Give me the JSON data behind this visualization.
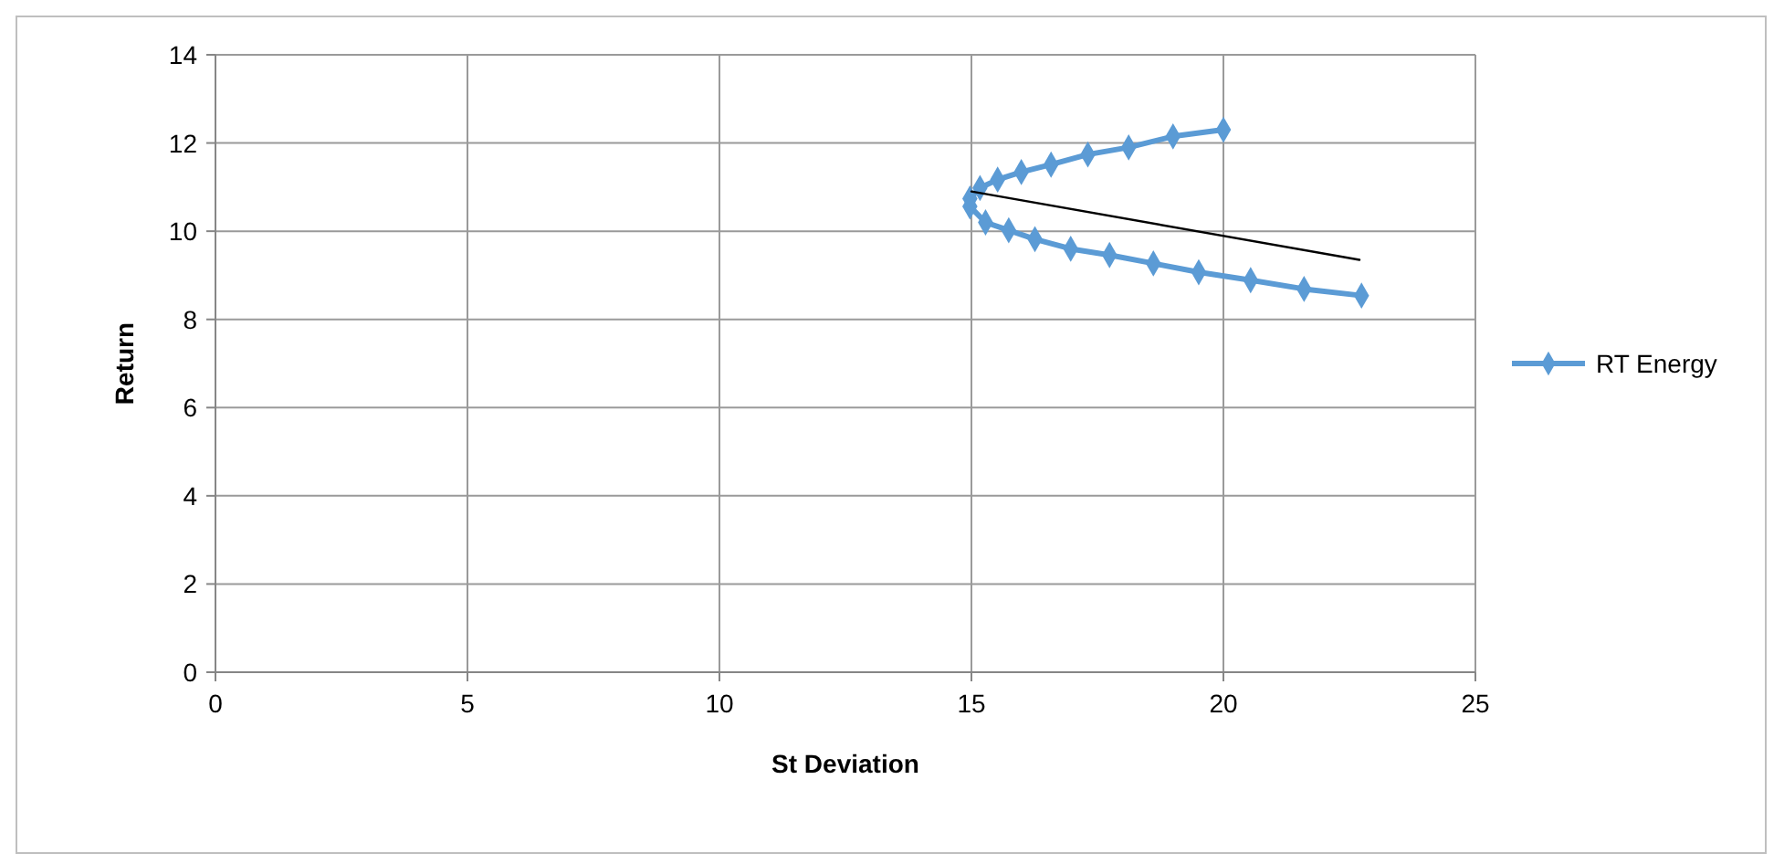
{
  "chart_data": {
    "type": "line",
    "xlabel": "St Deviation",
    "ylabel": "Return",
    "xlim": [
      0,
      25
    ],
    "xticks": [
      0,
      5,
      10,
      15,
      20,
      25
    ],
    "ylim": [
      0,
      14
    ],
    "yticks": [
      0,
      2,
      4,
      6,
      8,
      10,
      12,
      14
    ],
    "grid": true,
    "legend": "right",
    "line_style": "solid",
    "series": [
      {
        "name": "RT Energy",
        "color": "#5b9bd5",
        "marker": "diamond",
        "x": [
          20.0,
          19.0,
          18.12,
          17.31,
          16.58,
          15.99,
          15.52,
          15.17,
          14.97,
          14.97,
          15.28,
          15.74,
          16.26,
          16.97,
          17.74,
          18.61,
          19.51,
          20.54,
          21.6,
          22.74
        ],
        "values": [
          12.3,
          12.15,
          11.9,
          11.74,
          11.51,
          11.34,
          11.17,
          10.98,
          10.74,
          10.56,
          10.2,
          10.02,
          9.82,
          9.6,
          9.46,
          9.27,
          9.07,
          8.89,
          8.69,
          8.54
        ]
      },
      {
        "color": "#000000",
        "marker": "none",
        "x": [
          15.0,
          22.7
        ],
        "values": [
          10.9,
          9.35
        ]
      }
    ]
  }
}
